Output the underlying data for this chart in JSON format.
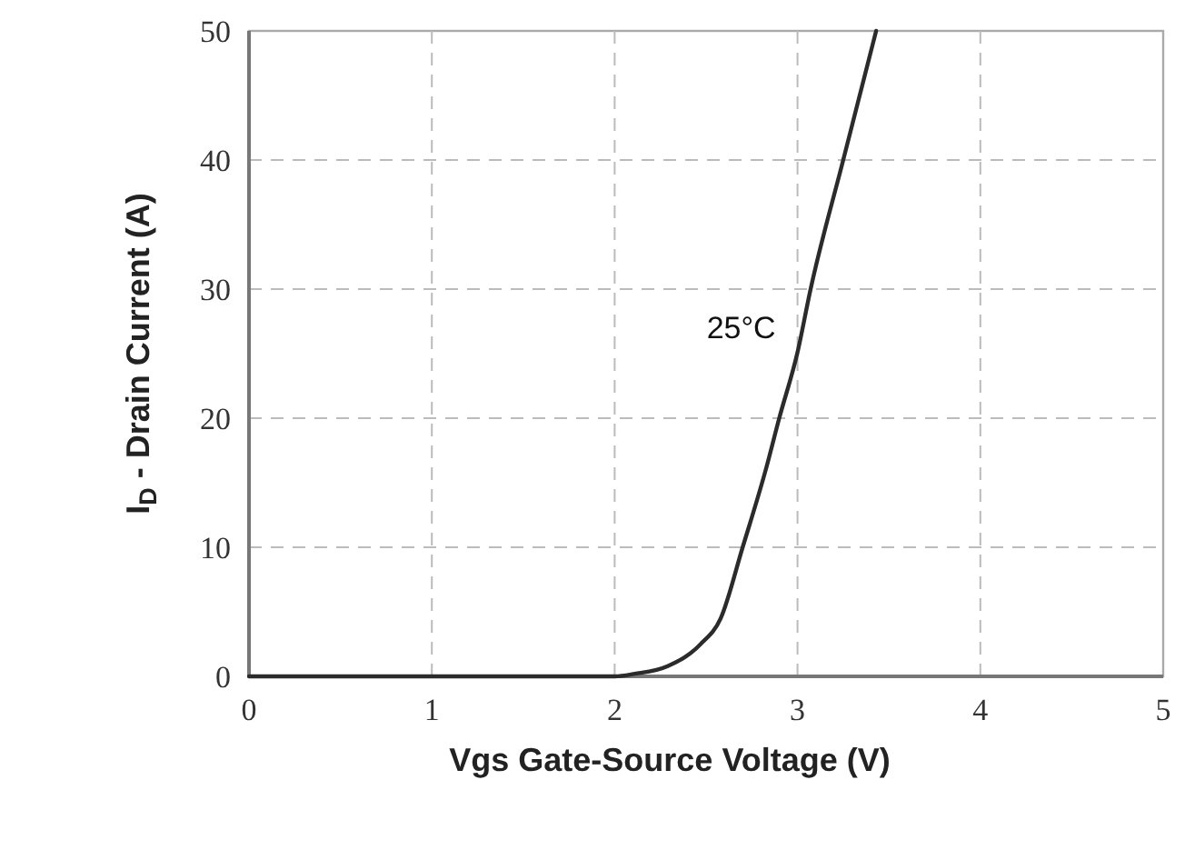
{
  "chart_data": {
    "type": "line",
    "xlabel": "Vgs Gate-Source Voltage (V)",
    "ylabel": "I$_{D}$ - Drain Current (A)",
    "x": [
      0,
      1,
      2.0,
      2.11,
      2.29,
      2.47,
      2.58,
      2.7,
      2.83,
      2.9,
      3.0,
      3.07,
      3.25,
      3.43
    ],
    "series": [
      {
        "color": "#2b2b2b",
        "values": [
          0,
          0,
          0,
          0.2,
          0.8,
          2.5,
          4.5,
          10,
          16.2,
          20,
          25.1,
          29.9,
          40,
          50
        ]
      }
    ],
    "annotations": [
      {
        "text": "25°C",
        "x": 3.0,
        "y": 25.1
      }
    ],
    "xlim": [
      0,
      5
    ],
    "xticks": [
      0,
      1,
      2,
      3,
      4,
      5
    ],
    "ylim": [
      0,
      50
    ],
    "yticks": [
      0,
      10,
      20,
      30,
      40,
      50
    ],
    "grid": true,
    "line_style": "solid",
    "marker": "none"
  }
}
